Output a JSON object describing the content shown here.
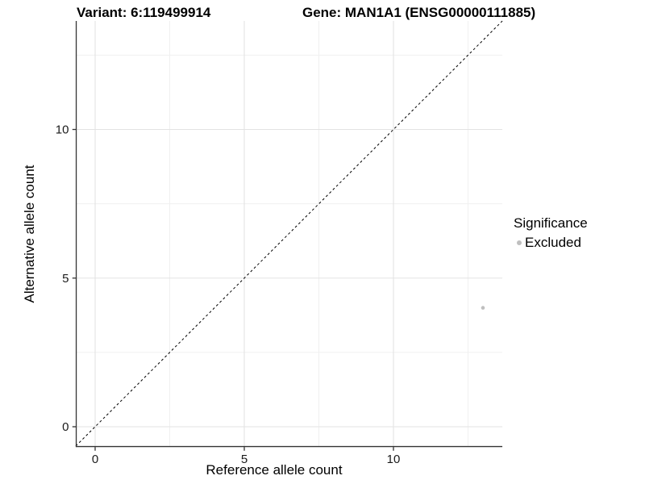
{
  "titles": {
    "variant": "Variant: 6:119499914",
    "gene": "Gene: MAN1A1 (ENSG00000111885)"
  },
  "chart_data": {
    "type": "scatter",
    "xlabel": "Reference allele count",
    "ylabel": "Alternative allele count",
    "xlim": [
      -0.65,
      13.65
    ],
    "ylim": [
      -0.65,
      13.65
    ],
    "xticks": [
      0,
      5,
      10
    ],
    "yticks": [
      0,
      5,
      10
    ],
    "xminor": [
      2.5,
      7.5,
      12.5
    ],
    "yminor": [
      2.5,
      7.5,
      12.5
    ],
    "grid": true,
    "identity_line": {
      "slope": 1,
      "intercept": 0,
      "style": "dashed"
    },
    "points": [
      {
        "x": 13,
        "y": 4,
        "series": "Excluded"
      }
    ],
    "legend": {
      "title": "Significance",
      "position": "right",
      "entries": [
        {
          "label": "Excluded",
          "color": "#bfbfbf"
        }
      ]
    }
  },
  "colors": {
    "background": "#ffffff",
    "point": "#bfbfbf",
    "axis": "#333333",
    "grid_major": "#e3e3e3",
    "grid_minor": "#f0f0f0",
    "tick_text": "#1a1a1a",
    "dashed_line": "#000000"
  }
}
